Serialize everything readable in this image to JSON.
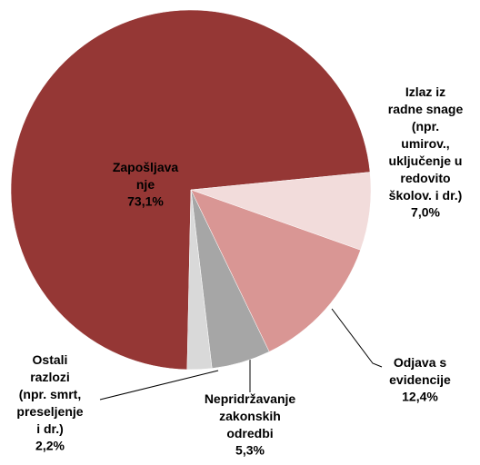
{
  "chart_data": {
    "type": "pie",
    "categories": [
      "Zapošljava\nnje",
      "Izlaz iz\nradne snage\n(npr.\numirov.,\nuključenje u\nredovito\nškolov. i dr.)",
      "Odjava s\nevidencije",
      "Nepridržavanje\nzakonskih\nodredbi",
      "Ostali\nrazlozi\n(npr. smrt,\npreseljenje\ni dr.)"
    ],
    "values": [
      73.1,
      7.0,
      12.4,
      5.3,
      2.2
    ],
    "value_labels": [
      "73,1%",
      "7,0%",
      "12,4%",
      "5,3%",
      "2,2%"
    ],
    "colors": [
      "#953735",
      "#f2dcdb",
      "#d99694",
      "#a6a6a6",
      "#d9d9d9"
    ]
  }
}
